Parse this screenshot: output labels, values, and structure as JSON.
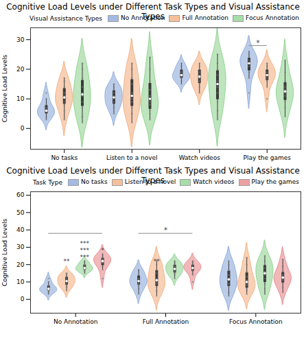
{
  "chart_data": [
    {
      "type": "violin",
      "title": "Cognitive Load Levels under Different Task Types and Visual Assistance Types",
      "y_label": "Cognitive Load Levels",
      "legend_title": "Visual Assistance Types",
      "legend": "top-right",
      "categories": [
        "No tasks",
        "Listen to a novel",
        "Watch videos",
        "Play the games"
      ],
      "ylim": [
        -7,
        34
      ],
      "yticks": [
        0,
        10,
        20,
        30
      ],
      "series": [
        {
          "name": "No Annotation",
          "color": "#8eaadb",
          "values": [
            [
              3,
              4,
              5,
              5,
              6,
              6,
              7,
              8,
              10,
              12
            ],
            [
              5,
              7,
              8,
              9,
              10,
              11,
              12,
              13,
              14,
              15
            ],
            [
              15,
              16,
              17,
              17,
              18,
              18,
              19,
              20,
              21,
              22
            ],
            [
              12,
              17,
              19,
              21,
              22,
              22,
              23,
              24,
              25,
              26
            ]
          ]
        },
        {
          "name": "Full Annotation",
          "color": "#f4b183",
          "values": [
            [
              3,
              6,
              8,
              9,
              10,
              11,
              12,
              14,
              16,
              17
            ],
            [
              2,
              5,
              7,
              9,
              10,
              12,
              15,
              17,
              20,
              22
            ],
            [
              12,
              14,
              15,
              16,
              17,
              18,
              19,
              20,
              21,
              22
            ],
            [
              10,
              14,
              16,
              17,
              18,
              18,
              19,
              20,
              21,
              22
            ]
          ]
        },
        {
          "name": "Focus Annotation",
          "color": "#93d493",
          "values": [
            [
              2,
              4,
              7,
              9,
              11,
              12,
              14,
              17,
              20,
              22
            ],
            [
              3,
              5,
              6,
              8,
              9,
              11,
              13,
              16,
              20,
              24
            ],
            [
              3,
              6,
              9,
              12,
              14,
              16,
              18,
              20,
              22,
              25
            ],
            [
              4,
              7,
              9,
              11,
              12,
              13,
              14,
              16,
              19,
              23
            ]
          ]
        }
      ],
      "brackets": [
        {
          "category": "Play the games",
          "from": "No Annotation",
          "to": "Full Annotation",
          "y": 28,
          "label": "*"
        }
      ],
      "annotations": []
    },
    {
      "type": "violin",
      "title": "Cognitive Load Levels under Different Task Types and Visual Assistance Types",
      "y_label": "Cognitive Load Levels",
      "legend_title": "Task Type",
      "legend": "top-right",
      "categories": [
        "No Annotation",
        "Full Annotation",
        "Focus Annotation"
      ],
      "ylim": [
        -8,
        62
      ],
      "yticks": [
        0,
        10,
        20,
        30,
        40,
        50,
        60
      ],
      "series": [
        {
          "name": "No tasks",
          "color": "#8eaadb",
          "values": [
            [
              3,
              4,
              5,
              5,
              6,
              6,
              7,
              8,
              10,
              12
            ],
            [
              3,
              6,
              8,
              9,
              10,
              11,
              12,
              14,
              16,
              17
            ],
            [
              2,
              4,
              7,
              9,
              11,
              12,
              14,
              17,
              20,
              22
            ]
          ]
        },
        {
          "name": "Listen to a novel",
          "color": "#f4b183",
          "values": [
            [
              5,
              7,
              8,
              9,
              10,
              11,
              12,
              13,
              14,
              15
            ],
            [
              2,
              5,
              7,
              9,
              10,
              12,
              15,
              17,
              20,
              22
            ],
            [
              3,
              5,
              6,
              8,
              9,
              11,
              13,
              16,
              20,
              24
            ]
          ]
        },
        {
          "name": "Watch videos",
          "color": "#93d493",
          "values": [
            [
              15,
              16,
              17,
              17,
              18,
              18,
              19,
              20,
              21,
              22
            ],
            [
              12,
              14,
              15,
              16,
              17,
              18,
              19,
              20,
              21,
              22
            ],
            [
              3,
              6,
              9,
              12,
              14,
              16,
              18,
              20,
              22,
              25
            ]
          ]
        },
        {
          "name": "Play the games",
          "color": "#e8898c",
          "values": [
            [
              12,
              17,
              19,
              21,
              22,
              22,
              23,
              24,
              25,
              26
            ],
            [
              10,
              14,
              16,
              17,
              18,
              18,
              19,
              20,
              21,
              22
            ],
            [
              4,
              7,
              9,
              11,
              12,
              13,
              14,
              16,
              19,
              23
            ]
          ]
        }
      ],
      "brackets": [
        {
          "category": "No Annotation",
          "from": "No tasks",
          "to": "Play the games",
          "y": 38
        },
        {
          "category": "Full Annotation",
          "from": "No tasks",
          "to": "Play the games",
          "y": 38,
          "label": "*"
        }
      ],
      "annotations": [
        {
          "text": "**",
          "category": "No Annotation",
          "series": "Listen to a novel",
          "y": 22
        },
        {
          "text": "***",
          "category": "No Annotation",
          "series": "Watch videos",
          "y": 32
        },
        {
          "text": "***",
          "category": "No Annotation",
          "series": "Watch videos",
          "y": 28
        },
        {
          "text": "***",
          "category": "No Annotation",
          "series": "Watch videos",
          "y": 24
        },
        {
          "text": "*",
          "category": "No Annotation",
          "series": "Play the games",
          "y": 28
        },
        {
          "text": "**",
          "category": "Full Annotation",
          "series": "Listen to a novel",
          "y": 22
        }
      ]
    }
  ]
}
